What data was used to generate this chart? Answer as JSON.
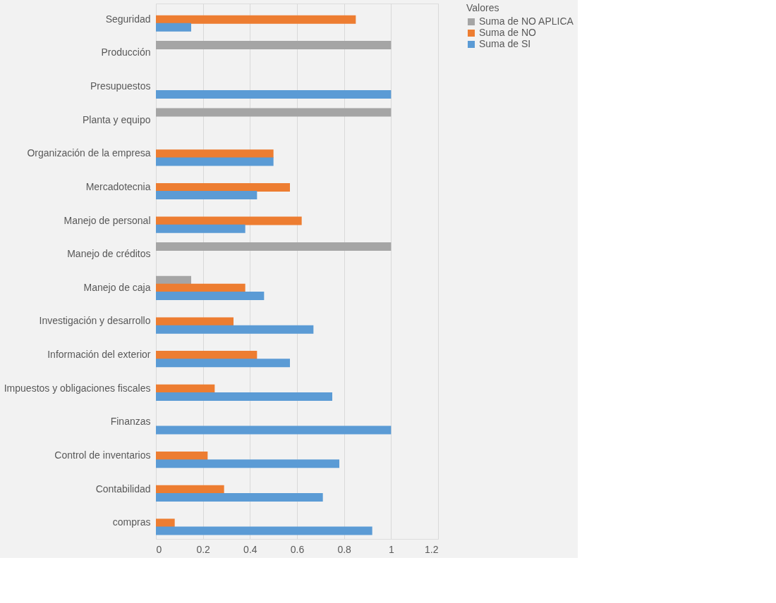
{
  "chart_data": {
    "type": "bar",
    "orientation": "horizontal",
    "legend_title": "Valores",
    "legend": "right",
    "categories": [
      "Seguridad",
      "Producción",
      "Presupuestos",
      "Planta y equipo",
      "Organización de la empresa",
      "Mercadotecnia",
      "Manejo de personal",
      "Manejo de créditos",
      "Manejo de caja",
      "Investigación y desarrollo",
      "Información del exterior",
      "Impuestos y obligaciones fiscales",
      "Finanzas",
      "Control de inventarios",
      "Contabilidad",
      "compras"
    ],
    "series": [
      {
        "name": "Suma de NO APLICA",
        "color": "#a5a5a5",
        "values": [
          null,
          1,
          null,
          1,
          null,
          null,
          null,
          1,
          0.15,
          null,
          null,
          null,
          null,
          null,
          null,
          null
        ]
      },
      {
        "name": "Suma de NO",
        "color": "#ed7d31",
        "values": [
          0.85,
          null,
          null,
          null,
          0.5,
          0.57,
          0.62,
          null,
          0.38,
          0.33,
          0.43,
          0.25,
          null,
          0.22,
          0.29,
          0.08
        ]
      },
      {
        "name": "Suma de SI",
        "color": "#5b9bd5",
        "values": [
          0.15,
          null,
          1,
          null,
          0.5,
          0.43,
          0.38,
          null,
          0.46,
          0.67,
          0.57,
          0.75,
          1,
          0.78,
          0.71,
          0.92
        ]
      }
    ],
    "xlim": [
      0,
      1.2
    ],
    "xticks": [
      0,
      0.2,
      0.4,
      0.6,
      0.8,
      1,
      1.2
    ],
    "grid": "x"
  }
}
